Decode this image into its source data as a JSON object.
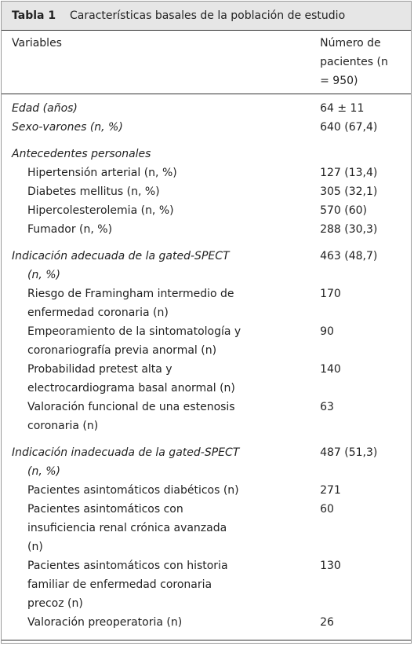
{
  "table": {
    "label": "Tabla 1",
    "title": "Características basales de la población de estudio",
    "header": [
      "Variables",
      "Número de pacientes (n = 950)"
    ],
    "rows": [
      [
        [
          "Edad (años)"
        ],
        "64 ± 11"
      ],
      [
        [
          "Sexo-varones (n, %)"
        ],
        "640 (67,4)"
      ],
      [
        [
          "Antecedentes personales"
        ]
      ],
      [
        [
          "Hipertensión arterial (n, %)"
        ],
        "127 (13,4)"
      ],
      [
        [
          "Diabetes mellitus (n, %)"
        ],
        "305 (32,1)"
      ],
      [
        [
          "Hipercolesterolemia (n, %)"
        ],
        "570 (60)"
      ],
      [
        [
          "Fumador (n, %)"
        ],
        "288 (30,3)"
      ],
      [
        [
          "Indicación adecuada de la gated-SPECT",
          "(n, %)"
        ],
        "463 (48,7)"
      ],
      [
        [
          "Riesgo de Framingham intermedio de",
          "enfermedad coronaria (n)"
        ],
        "170"
      ],
      [
        [
          "Empeoramiento de la sintomatología y",
          "coronariografía previa anormal (n)"
        ],
        "90"
      ],
      [
        [
          "Probabilidad pretest alta y",
          "electrocardiograma basal anormal (n)"
        ],
        "140"
      ],
      [
        [
          "Valoración funcional de una estenosis",
          "coronaria (n)"
        ],
        "63"
      ],
      [
        [
          "Indicación inadecuada de la gated-SPECT",
          "(n, %)"
        ],
        "487 (51,3)"
      ],
      [
        [
          "Pacientes asintomáticos diabéticos (n)"
        ],
        "271"
      ],
      [
        [
          "Pacientes asintomáticos con",
          "insuficiencia renal crónica avanzada",
          "(n)"
        ],
        "60"
      ],
      [
        [
          "Pacientes asintomáticos con historia",
          "familiar de enfermedad coronaria",
          "precoz (n)"
        ],
        "130"
      ],
      [
        [
          "Valoración preoperatoria (n)"
        ],
        "26"
      ]
    ]
  }
}
